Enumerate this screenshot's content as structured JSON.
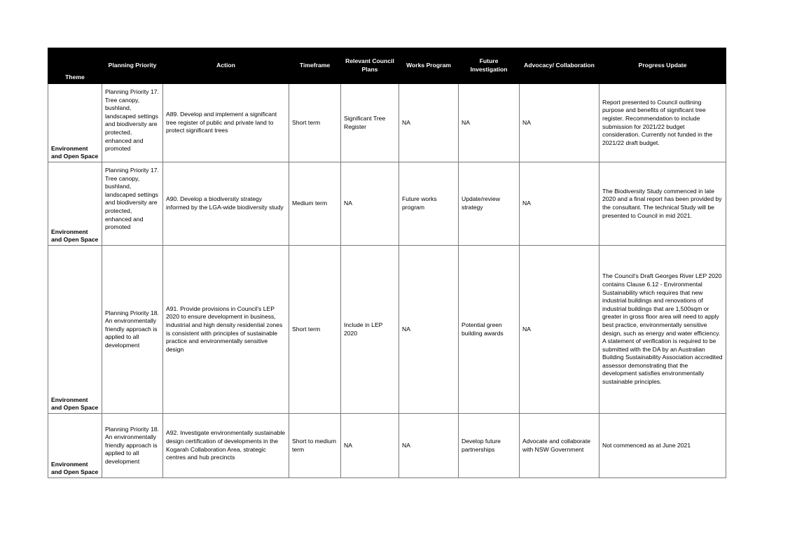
{
  "headers": {
    "theme": "Theme",
    "planning_priority": "Planning Priority",
    "action": "Action",
    "timeframe": "Timeframe",
    "council_plans": "Relevant Council Plans",
    "works_program": "Works Program",
    "future_investigation": "Future Investigation",
    "advocacy": "Advocacy/ Collaboration",
    "progress": "Progress Update"
  },
  "rows": [
    {
      "theme": "Environment and Open Space",
      "priority": "Planning Priority 17. Tree canopy, bushland, landscaped settings and biodiversity are protected, enhanced and promoted",
      "action": "A89. Develop and implement a significant tree register of public and private land to protect significant trees",
      "timeframe": "Short term",
      "plans": "Significant Tree Register",
      "works": "NA",
      "investigation": "NA",
      "advocacy": "NA",
      "progress": "Report presented to Council outlining purpose and benefits of significant tree register. Recommendation to include submission for 2021/22 budget consideration. Currently not funded in the 2021/22 draft budget."
    },
    {
      "theme": "Environment and Open Space",
      "priority": "Planning Priority 17. Tree canopy, bushland, landscaped settings and biodiversity are protected, enhanced and promoted",
      "action": "A90. Develop a biodiversity strategy informed by the LGA-wide biodiversity study",
      "timeframe": "Medium term",
      "plans": "NA",
      "works": "Future works program",
      "investigation": "Update/review strategy",
      "advocacy": "NA",
      "progress": "The Biodiversity Study commenced in late 2020 and a final report has been provided by the consultant. The technical Study will be presented to Council in mid 2021."
    },
    {
      "theme": "Environment and Open Space",
      "priority": "Planning Priority 18. An environmentally friendly approach is applied to all development",
      "action": "A91. Provide provisions in Council's LEP 2020 to ensure development in business, industrial and high density residential zones is consistent with principles of sustainable practice and environmentally sensitive design",
      "timeframe": "Short term",
      "plans": "Include in LEP 2020",
      "works": "NA",
      "investigation": "Potential green building awards",
      "advocacy": "NA",
      "progress": "The Council's Draft Georges River LEP 2020 contains Clause 6.12 - Environmental Sustainability which requires that new industrial buildings and renovations of industrial buildings that are 1,500sqm or greater in gross floor area will need to apply best practice, environmentally sensitive design, such as energy and water efficiency. A statement of verification is required to be submitted with the DA by an Australian Building Sustainability Association accredited assessor demonstrating that the development satisfies environmentally sustainable principles."
    },
    {
      "theme": "Environment and Open Space",
      "priority": "Planning Priority 18. An environmentally friendly approach is applied to all development",
      "action": "A92. Investigate environmentally sustainable design certification of developments in the Kogarah Collaboration Area, strategic centres and hub precincts",
      "timeframe": "Short to medium term",
      "plans": "NA",
      "works": "NA",
      "investigation": "Develop future partnerships",
      "advocacy": "Advocate and collaborate with NSW Government",
      "progress": "Not commenced as at June 2021"
    }
  ]
}
